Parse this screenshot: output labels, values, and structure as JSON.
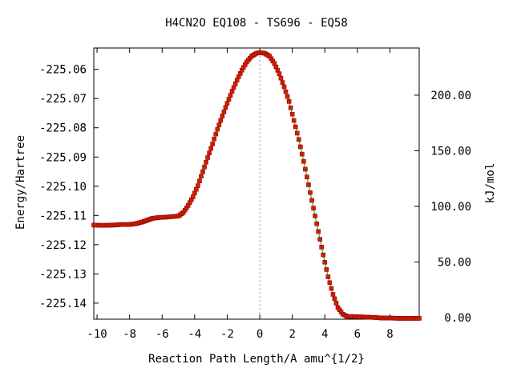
{
  "chart_data": {
    "type": "line",
    "title": "H4CN2O    EQ108 - TS696 - EQ58",
    "xlabel": "Reaction Path Length/A amu^{1/2}",
    "ylabel": "Energy/Hartree",
    "y2label": "kJ/mol",
    "xlim": [
      -10.2,
      9.8
    ],
    "ylim": [
      -225.1455,
      -225.0527
    ],
    "y2lim": [
      -1.4,
      242.4
    ],
    "xticks": [
      "-10",
      "-8",
      "-6",
      "-4",
      "-2",
      "0",
      "2",
      "4",
      "6",
      "8"
    ],
    "yticks": [
      "-225.06",
      "-225.07",
      "-225.08",
      "-225.09",
      "-225.10",
      "-225.11",
      "-225.12",
      "-225.13",
      "-225.14"
    ],
    "y2ticks": [
      "0.00",
      "50.00",
      "100.00",
      "150.00",
      "200.00"
    ],
    "ts_marker_x": 0,
    "grid": false,
    "legend": "none",
    "line_color": "#00aa00",
    "marker_color": "#cc2200",
    "marker_edge_color": "#990000",
    "dash_color": "#999999",
    "series": [
      {
        "points": [
          [
            -10.2,
            -225.1133
          ],
          [
            -9.6,
            -225.1134
          ],
          [
            -9.0,
            -225.1133
          ],
          [
            -8.5,
            -225.1131
          ],
          [
            -8.0,
            -225.1131
          ],
          [
            -7.6,
            -225.1128
          ],
          [
            -7.2,
            -225.1122
          ],
          [
            -6.9,
            -225.1116
          ],
          [
            -6.6,
            -225.111
          ],
          [
            -6.2,
            -225.1107
          ],
          [
            -5.8,
            -225.1106
          ],
          [
            -5.4,
            -225.1104
          ],
          [
            -5.0,
            -225.1102
          ],
          [
            -4.7,
            -225.109
          ],
          [
            -4.4,
            -225.1066
          ],
          [
            -4.1,
            -225.1036
          ],
          [
            -3.8,
            -225.0998
          ],
          [
            -3.5,
            -225.095
          ],
          [
            -3.2,
            -225.0902
          ],
          [
            -2.9,
            -225.0855
          ],
          [
            -2.6,
            -225.0805
          ],
          [
            -2.3,
            -225.076
          ],
          [
            -2.0,
            -225.0716
          ],
          [
            -1.7,
            -225.0675
          ],
          [
            -1.4,
            -225.0637
          ],
          [
            -1.1,
            -225.0603
          ],
          [
            -0.8,
            -225.0575
          ],
          [
            -0.5,
            -225.0555
          ],
          [
            -0.2,
            -225.0545
          ],
          [
            0.0,
            -225.0543
          ],
          [
            0.3,
            -225.0545
          ],
          [
            0.6,
            -225.0555
          ],
          [
            0.9,
            -225.058
          ],
          [
            1.2,
            -225.0615
          ],
          [
            1.5,
            -225.066
          ],
          [
            1.8,
            -225.071
          ],
          [
            2.1,
            -225.0775
          ],
          [
            2.4,
            -225.084
          ],
          [
            2.7,
            -225.0915
          ],
          [
            3.0,
            -225.0995
          ],
          [
            3.3,
            -225.1075
          ],
          [
            3.6,
            -225.1155
          ],
          [
            3.9,
            -225.1235
          ],
          [
            4.2,
            -225.131
          ],
          [
            4.5,
            -225.137
          ],
          [
            4.8,
            -225.1415
          ],
          [
            5.1,
            -225.1438
          ],
          [
            5.4,
            -225.1446
          ],
          [
            5.8,
            -225.1446
          ],
          [
            6.2,
            -225.1447
          ],
          [
            6.6,
            -225.1448
          ],
          [
            7.0,
            -225.1449
          ],
          [
            7.5,
            -225.1451
          ],
          [
            8.0,
            -225.1451
          ],
          [
            8.5,
            -225.1452
          ],
          [
            9.0,
            -225.1452
          ],
          [
            9.5,
            -225.1452
          ],
          [
            9.8,
            -225.1452
          ]
        ]
      }
    ]
  }
}
